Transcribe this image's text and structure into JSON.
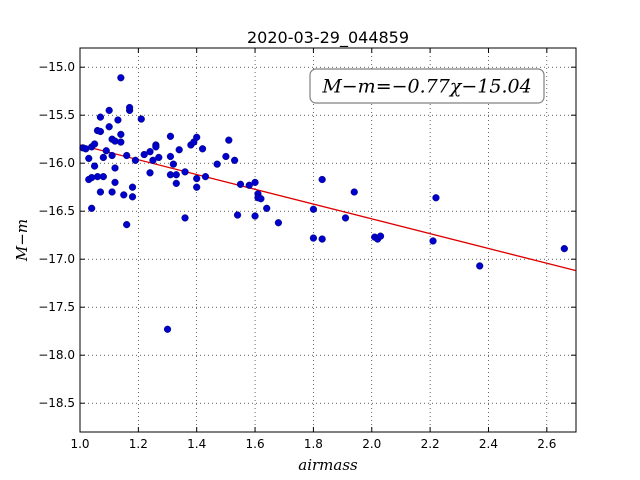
{
  "chart_data": {
    "type": "scatter",
    "title": "2020-03-29_044859",
    "xlabel": "airmass",
    "ylabel": "M−m",
    "xlim": [
      1.0,
      2.7
    ],
    "ylim": [
      -18.8,
      -14.8
    ],
    "x_ticks": [
      1.0,
      1.2,
      1.4,
      1.6,
      1.8,
      2.0,
      2.2,
      2.4,
      2.6
    ],
    "x_tick_labels": [
      "1.0",
      "1.2",
      "1.4",
      "1.6",
      "1.8",
      "2.0",
      "2.2",
      "2.4",
      "2.6"
    ],
    "y_ticks": [
      -15.0,
      -15.5,
      -16.0,
      -16.5,
      -17.0,
      -17.5,
      -18.0,
      -18.5
    ],
    "y_tick_labels": [
      "−15.0",
      "−15.5",
      "−16.0",
      "−16.5",
      "−17.0",
      "−17.5",
      "−18.0",
      "−18.5"
    ],
    "grid": true,
    "annotation": "M−m=−0.77χ−15.04",
    "fit_line": {
      "slope": -0.77,
      "intercept": -15.04,
      "color": "#dd0000"
    },
    "marker_color": "#0000cc",
    "points": [
      [
        1.01,
        -15.84
      ],
      [
        1.02,
        -15.85
      ],
      [
        1.03,
        -15.95
      ],
      [
        1.03,
        -16.17
      ],
      [
        1.04,
        -15.83
      ],
      [
        1.04,
        -16.15
      ],
      [
        1.04,
        -16.47
      ],
      [
        1.05,
        -15.8
      ],
      [
        1.05,
        -16.03
      ],
      [
        1.06,
        -16.14
      ],
      [
        1.06,
        -15.66
      ],
      [
        1.07,
        -15.67
      ],
      [
        1.07,
        -16.3
      ],
      [
        1.07,
        -15.52
      ],
      [
        1.08,
        -16.14
      ],
      [
        1.08,
        -15.94
      ],
      [
        1.09,
        -15.87
      ],
      [
        1.1,
        -15.62
      ],
      [
        1.1,
        -15.45
      ],
      [
        1.11,
        -15.75
      ],
      [
        1.11,
        -15.92
      ],
      [
        1.11,
        -16.3
      ],
      [
        1.12,
        -16.05
      ],
      [
        1.12,
        -16.2
      ],
      [
        1.12,
        -15.77
      ],
      [
        1.13,
        -15.55
      ],
      [
        1.14,
        -15.11
      ],
      [
        1.14,
        -15.7
      ],
      [
        1.14,
        -15.78
      ],
      [
        1.15,
        -16.33
      ],
      [
        1.16,
        -16.64
      ],
      [
        1.16,
        -15.92
      ],
      [
        1.17,
        -15.45
      ],
      [
        1.17,
        -15.42
      ],
      [
        1.18,
        -16.35
      ],
      [
        1.18,
        -16.25
      ],
      [
        1.19,
        -15.97
      ],
      [
        1.21,
        -15.54
      ],
      [
        1.22,
        -15.91
      ],
      [
        1.24,
        -15.88
      ],
      [
        1.24,
        -16.1
      ],
      [
        1.25,
        -15.97
      ],
      [
        1.26,
        -15.81
      ],
      [
        1.26,
        -15.83
      ],
      [
        1.27,
        -15.94
      ],
      [
        1.3,
        -17.73
      ],
      [
        1.31,
        -15.72
      ],
      [
        1.31,
        -15.93
      ],
      [
        1.31,
        -16.12
      ],
      [
        1.32,
        -16.01
      ],
      [
        1.33,
        -16.21
      ],
      [
        1.33,
        -16.12
      ],
      [
        1.34,
        -15.86
      ],
      [
        1.36,
        -16.57
      ],
      [
        1.36,
        -16.09
      ],
      [
        1.38,
        -15.81
      ],
      [
        1.39,
        -15.78
      ],
      [
        1.4,
        -15.73
      ],
      [
        1.4,
        -16.16
      ],
      [
        1.4,
        -16.25
      ],
      [
        1.42,
        -15.85
      ],
      [
        1.43,
        -16.14
      ],
      [
        1.47,
        -16.01
      ],
      [
        1.5,
        -15.93
      ],
      [
        1.51,
        -15.76
      ],
      [
        1.53,
        -15.97
      ],
      [
        1.54,
        -16.54
      ],
      [
        1.55,
        -16.22
      ],
      [
        1.58,
        -16.23
      ],
      [
        1.6,
        -16.2
      ],
      [
        1.6,
        -16.55
      ],
      [
        1.61,
        -16.32
      ],
      [
        1.61,
        -16.36
      ],
      [
        1.62,
        -16.37
      ],
      [
        1.64,
        -16.47
      ],
      [
        1.68,
        -16.62
      ],
      [
        1.8,
        -16.48
      ],
      [
        1.8,
        -16.78
      ],
      [
        1.83,
        -16.17
      ],
      [
        1.83,
        -16.79
      ],
      [
        1.91,
        -16.57
      ],
      [
        1.94,
        -16.3
      ],
      [
        2.01,
        -16.77
      ],
      [
        2.02,
        -16.79
      ],
      [
        2.03,
        -16.76
      ],
      [
        2.21,
        -16.81
      ],
      [
        2.22,
        -16.36
      ],
      [
        2.37,
        -17.07
      ],
      [
        2.66,
        -16.89
      ]
    ]
  }
}
